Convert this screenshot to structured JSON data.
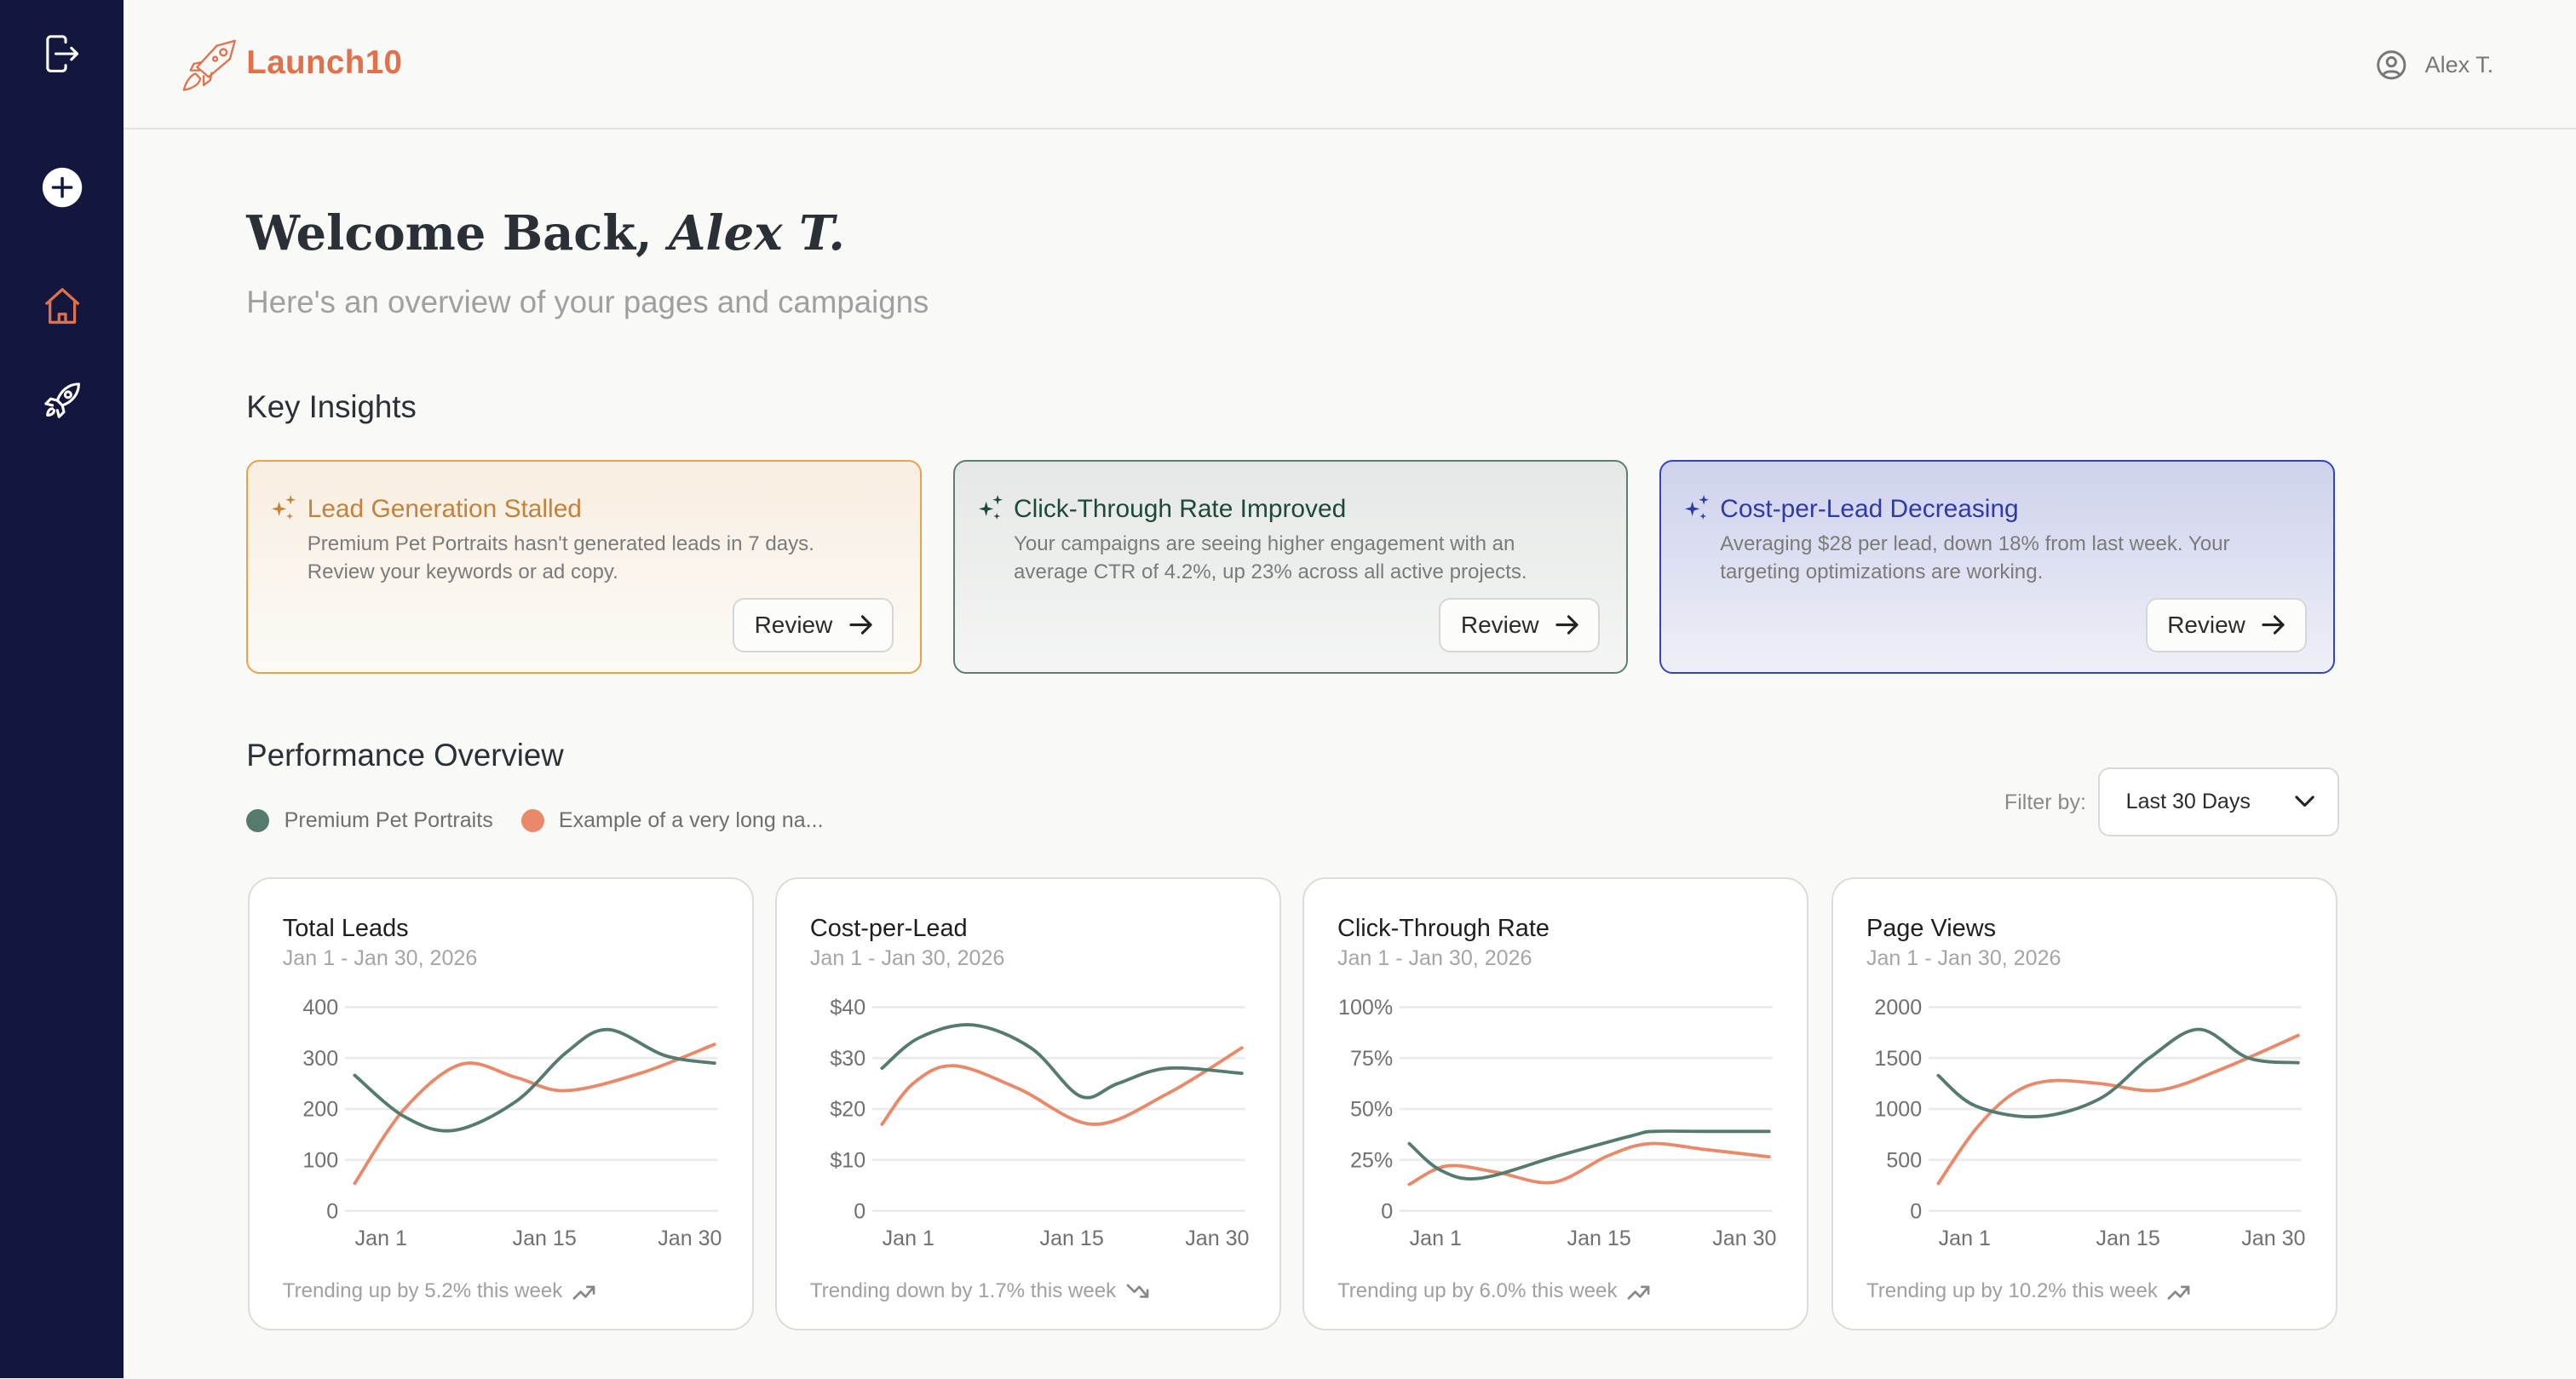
{
  "app": {
    "name": "Launch10",
    "user_name": "Alex T."
  },
  "sidebar": {
    "items": [
      {
        "icon": "logout-icon"
      },
      {
        "icon": "plus-icon"
      },
      {
        "icon": "home-icon",
        "active": true
      },
      {
        "icon": "rocket-icon"
      }
    ]
  },
  "welcome": {
    "prefix": "Welcome Back, ",
    "name": "Alex T.",
    "subtitle": "Here's an overview of your pages and campaigns"
  },
  "insights": {
    "title": "Key Insights",
    "cards": [
      {
        "title": "Lead Generation Stalled",
        "description": "Premium Pet Portraits hasn't generated leads in 7 days. Review your keywords or ad copy.",
        "button": "Review",
        "accent": "#c4813a",
        "border": "#e8a24a"
      },
      {
        "title": "Click-Through Rate Improved",
        "description": "Your campaigns are seeing higher engagement with an average CTR of 4.2%, up 23% across all active projects.",
        "button": "Review",
        "accent": "#1d4a38",
        "border": "#5c7f72"
      },
      {
        "title": "Cost-per-Lead Decreasing",
        "description": "Averaging $28 per lead, down 18% from last week. Your targeting optimizations are working.",
        "button": "Review",
        "accent": "#2f3aa8",
        "border": "#3443c0"
      }
    ]
  },
  "performance": {
    "title": "Performance Overview",
    "legend": [
      {
        "label": "Premium Pet Portraits",
        "color": "#557a6e"
      },
      {
        "label": "Example of a very long na...",
        "color": "#e9896a"
      }
    ],
    "filter_label": "Filter by:",
    "filter_value": "Last 30 Days"
  },
  "chart_data": [
    {
      "type": "line",
      "title": "Total Leads",
      "subtitle": "Jan 1 - Jan 30, 2026",
      "ylim": [
        0,
        400
      ],
      "yticks": [
        "0",
        "100",
        "200",
        "300",
        "400"
      ],
      "ytick_values": [
        0,
        100,
        200,
        300,
        400
      ],
      "xticks": [
        "Jan 1",
        "Jan 15",
        "Jan 30"
      ],
      "grid": true,
      "trend": "Trending up by 5.2% this week",
      "trend_direction": "up",
      "series": [
        {
          "color": "#557a6e",
          "x": [
            1,
            5,
            9,
            14,
            18,
            21.4,
            26,
            30
          ],
          "y": [
            266,
            185,
            158,
            215,
            310,
            356,
            305,
            290
          ]
        },
        {
          "color": "#e9896a",
          "x": [
            1,
            5,
            9.6,
            14,
            18,
            24,
            30
          ],
          "y": [
            54,
            200,
            288,
            262,
            236,
            270,
            327
          ]
        }
      ]
    },
    {
      "type": "line",
      "title": "Cost-per-Lead",
      "subtitle": "Jan 1 - Jan 30, 2026",
      "ylim": [
        0,
        40
      ],
      "yticks": [
        "0",
        "$10",
        "$20",
        "$30",
        "$40"
      ],
      "ytick_values": [
        0,
        10,
        20,
        30,
        40
      ],
      "xticks": [
        "Jan 1",
        "Jan 15",
        "Jan 30"
      ],
      "grid": true,
      "trend": "Trending down by 1.7% this week",
      "trend_direction": "down",
      "series": [
        {
          "color": "#557a6e",
          "x": [
            1,
            4,
            8.3,
            13,
            17,
            20,
            24,
            30
          ],
          "y": [
            28,
            34,
            36.5,
            32,
            22.5,
            25,
            28,
            27
          ]
        },
        {
          "color": "#e9896a",
          "x": [
            1,
            3.5,
            6.8,
            12,
            18,
            24,
            30
          ],
          "y": [
            17,
            25,
            28.5,
            24,
            17,
            23,
            32
          ]
        }
      ]
    },
    {
      "type": "line",
      "title": "Click-Through Rate",
      "subtitle": "Jan 1 - Jan 30, 2026",
      "ylim": [
        0,
        100
      ],
      "yticks": [
        "0",
        "25%",
        "50%",
        "75%",
        "100%"
      ],
      "ytick_values": [
        0,
        25,
        50,
        75,
        100
      ],
      "xticks": [
        "Jan 1",
        "Jan 15",
        "Jan 30"
      ],
      "grid": true,
      "trend": "Trending up by 6.0% this week",
      "trend_direction": "up",
      "series": [
        {
          "color": "#557a6e",
          "x": [
            1,
            3.5,
            6.7,
            13,
            19,
            20.7,
            25,
            30
          ],
          "y": [
            33,
            20,
            16,
            27,
            37,
            39,
            39,
            39
          ]
        },
        {
          "color": "#e9896a",
          "x": [
            1,
            4,
            8,
            12.6,
            17,
            20.4,
            25,
            30
          ],
          "y": [
            13,
            22,
            19,
            14,
            27,
            33,
            30,
            26.5
          ]
        }
      ]
    },
    {
      "type": "line",
      "title": "Page Views",
      "subtitle": "Jan 1 - Jan 30, 2026",
      "ylim": [
        0,
        2000
      ],
      "yticks": [
        "0",
        "500",
        "1000",
        "1500",
        "2000"
      ],
      "ytick_values": [
        0,
        500,
        1000,
        1500,
        2000
      ],
      "xticks": [
        "Jan 1",
        "Jan 15",
        "Jan 30"
      ],
      "grid": true,
      "trend": "Trending up by 10.2% this week",
      "trend_direction": "up",
      "series": [
        {
          "color": "#557a6e",
          "x": [
            1,
            4,
            9,
            14,
            18,
            22,
            26,
            30
          ],
          "y": [
            1328,
            1030,
            925,
            1100,
            1500,
            1782,
            1500,
            1454
          ]
        },
        {
          "color": "#e9896a",
          "x": [
            1,
            4,
            7,
            9.9,
            14,
            18.8,
            24,
            30
          ],
          "y": [
            269,
            800,
            1150,
            1275,
            1250,
            1185,
            1400,
            1722
          ]
        }
      ]
    }
  ]
}
